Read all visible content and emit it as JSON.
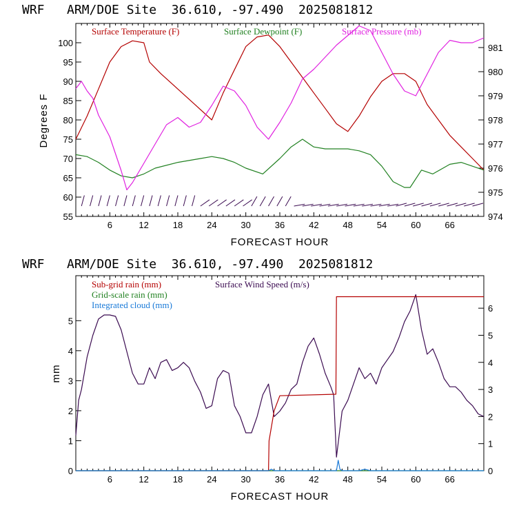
{
  "colors": {
    "temperature": "#b40000",
    "dewpoint": "#208020",
    "pressure": "#e020e0",
    "wind": "#3a0a50",
    "subgrid_rain": "#b40000",
    "gridscale_rain": "#208020",
    "cloud": "#1a7ad8",
    "frame": "#000000"
  },
  "chart_data": [
    {
      "type": "line",
      "title": "WRF   ARM/DOE Site  36.610, -97.490  2025081812",
      "xlabel": "FORECAST HOUR",
      "ylabel": "Degrees F",
      "xlim": [
        0,
        72
      ],
      "ylim": [
        55,
        105
      ],
      "y2lim": [
        974,
        982
      ],
      "x_ticks": [
        "6",
        "12",
        "18",
        "24",
        "30",
        "36",
        "42",
        "48",
        "54",
        "60",
        "66"
      ],
      "y_ticks": [
        "55",
        "60",
        "65",
        "70",
        "75",
        "80",
        "85",
        "90",
        "95",
        "100"
      ],
      "y2_ticks": [
        "974",
        "975",
        "976",
        "977",
        "978",
        "979",
        "980",
        "981"
      ],
      "legend": [
        "Surface Temperature (F)",
        "Surface Dewpoint (F)",
        "Surface Pressure (mb)"
      ],
      "legend_position": "top",
      "series": [
        {
          "name": "Surface Temperature (F)",
          "axis": "left",
          "x": [
            0,
            2,
            4,
            6,
            8,
            10,
            12,
            13,
            15,
            18,
            21,
            24,
            26,
            28,
            30,
            32,
            34,
            36,
            38,
            40,
            42,
            44,
            46,
            48,
            50,
            52,
            54,
            56,
            58,
            60,
            62,
            64,
            66,
            68,
            70,
            72
          ],
          "y": [
            75,
            81,
            88,
            95,
            99,
            100.5,
            100,
            95,
            92,
            88,
            84,
            80,
            87,
            93,
            99,
            101.5,
            102,
            99,
            95,
            91,
            87,
            83,
            79,
            77,
            81,
            86,
            90,
            92,
            92,
            90,
            84,
            80,
            76,
            73,
            70,
            67
          ]
        },
        {
          "name": "Surface Dewpoint (F)",
          "axis": "left",
          "x": [
            0,
            2,
            4,
            6,
            8,
            10,
            12,
            14,
            18,
            22,
            24,
            26,
            28,
            30,
            33,
            36,
            38,
            40,
            42,
            44,
            46,
            48,
            50,
            52,
            54,
            56,
            58,
            59,
            61,
            63,
            66,
            68,
            70,
            72
          ],
          "y": [
            71,
            70.5,
            69,
            67,
            65.5,
            65,
            66,
            67.5,
            69,
            70,
            70.5,
            70,
            69,
            67.5,
            66,
            70,
            73,
            75,
            73,
            72.5,
            72.5,
            72.5,
            72,
            71,
            68,
            64,
            62.5,
            62.5,
            67,
            66,
            68.5,
            69,
            68,
            67
          ]
        },
        {
          "name": "Surface Pressure (mb)",
          "axis": "right",
          "x": [
            0,
            1,
            2,
            3,
            4,
            6,
            8,
            9,
            10,
            12,
            14,
            16,
            18,
            20,
            22,
            24,
            26,
            28,
            30,
            32,
            34,
            36,
            38,
            40,
            42,
            44,
            46,
            48,
            50,
            52,
            54,
            56,
            58,
            60,
            62,
            64,
            66,
            68,
            70,
            72
          ],
          "y": [
            979.3,
            979.6,
            979.2,
            978.9,
            978.2,
            977.3,
            975.9,
            975.1,
            975.4,
            976.2,
            977.0,
            977.8,
            978.1,
            977.7,
            977.9,
            978.6,
            979.4,
            979.2,
            978.6,
            977.7,
            977.2,
            977.9,
            978.7,
            979.7,
            980.1,
            980.6,
            981.1,
            981.5,
            981.9,
            981.7,
            980.8,
            979.9,
            979.2,
            979.0,
            979.9,
            980.8,
            981.3,
            981.2,
            981.2,
            981.4
          ]
        }
      ],
      "wind_barbs": "row of wind barbs along bottom of panel"
    },
    {
      "type": "line",
      "title": "WRF   ARM/DOE Site  36.610, -97.490  2025081812",
      "xlabel": "FORECAST HOUR",
      "ylabel": "mm",
      "xlim": [
        0,
        72
      ],
      "ylim": [
        0,
        6.5
      ],
      "y2lim": [
        0,
        7.2
      ],
      "x_ticks": [
        "6",
        "12",
        "18",
        "24",
        "30",
        "36",
        "42",
        "48",
        "54",
        "60",
        "66"
      ],
      "y_ticks": [
        "0",
        "1",
        "2",
        "3",
        "4",
        "5"
      ],
      "y2_ticks": [
        "0",
        "1",
        "2",
        "3",
        "4",
        "5",
        "6"
      ],
      "legend": [
        "Sub-grid rain (mm)",
        "Grid-scale rain (mm)",
        "Integrated cloud (mm)",
        "Surface Wind Speed (m/s)"
      ],
      "legend_position": "top-left",
      "series": [
        {
          "name": "Surface Wind Speed (m/s)",
          "axis": "right",
          "x": [
            0,
            0.5,
            1,
            2,
            3,
            4,
            5,
            6,
            7,
            8,
            9,
            10,
            11,
            12,
            12.5,
            13,
            14,
            15,
            16,
            17,
            18,
            19,
            20,
            21,
            22,
            23,
            24,
            25,
            26,
            27,
            28,
            29,
            30,
            31,
            32,
            33,
            34,
            35,
            36,
            37,
            38,
            39,
            40,
            41,
            42,
            43,
            44,
            45,
            45.5,
            46,
            47,
            48,
            49,
            50,
            51,
            52,
            53,
            54,
            55,
            56,
            57,
            58,
            59,
            60,
            61,
            62,
            63,
            64,
            65,
            66,
            67,
            68,
            69,
            70,
            71,
            72
          ],
          "y": [
            1.3,
            2.6,
            3.0,
            4.2,
            5.0,
            5.6,
            5.75,
            5.75,
            5.7,
            5.2,
            4.4,
            3.6,
            3.2,
            3.2,
            3.5,
            3.8,
            3.4,
            4.0,
            4.1,
            3.7,
            3.8,
            4.0,
            3.8,
            3.3,
            2.9,
            2.3,
            2.4,
            3.4,
            3.7,
            3.6,
            2.4,
            2.0,
            1.4,
            1.4,
            2.0,
            2.8,
            3.2,
            2.0,
            2.2,
            2.5,
            3.0,
            3.2,
            4.0,
            4.6,
            4.9,
            4.3,
            3.6,
            3.1,
            2.8,
            0.5,
            2.2,
            2.6,
            3.2,
            3.8,
            3.4,
            3.6,
            3.2,
            3.8,
            4.1,
            4.4,
            4.9,
            5.5,
            5.9,
            6.5,
            5.2,
            4.3,
            4.5,
            4.0,
            3.4,
            3.1,
            3.1,
            2.9,
            2.6,
            2.4,
            2.1,
            2.0
          ]
        },
        {
          "name": "Sub-grid rain (mm)",
          "axis": "left",
          "x": [
            0,
            34,
            34.1,
            35,
            36,
            45.9,
            46,
            72
          ],
          "y": [
            0,
            0,
            1.0,
            2.0,
            2.5,
            2.55,
            5.8,
            5.8
          ]
        },
        {
          "name": "Grid-scale rain (mm)",
          "axis": "left",
          "x": [
            0,
            72
          ],
          "y": [
            0,
            0
          ]
        },
        {
          "name": "Integrated cloud (mm)",
          "axis": "left",
          "x": [
            0,
            34,
            34.5,
            35,
            46,
            46.3,
            46.6,
            47,
            50,
            51,
            52,
            72
          ],
          "y": [
            0,
            0,
            0.05,
            0,
            0,
            0.35,
            0.05,
            0,
            0,
            0.05,
            0,
            0
          ]
        }
      ]
    }
  ]
}
